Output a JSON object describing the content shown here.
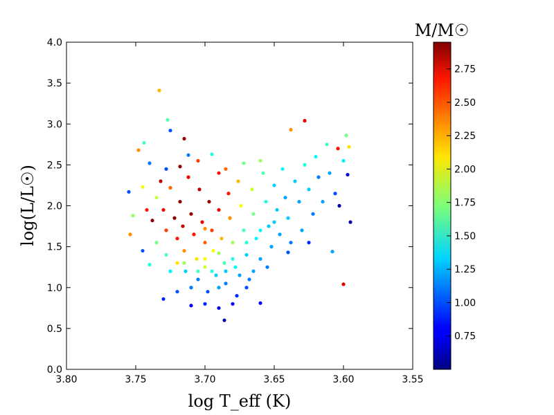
{
  "chart_data": {
    "type": "scatter",
    "xlabel": "log T_eff (K)",
    "ylabel": "log(L/L☉)",
    "colorbar_label": "M/M☉",
    "xlim": [
      3.8,
      3.55
    ],
    "ylim": [
      0.0,
      4.0
    ],
    "x_reversed": true,
    "grid": false,
    "colormap": "jet",
    "clim": [
      0.5,
      2.95
    ],
    "xticks": [
      "3.80",
      "3.75",
      "3.70",
      "3.65",
      "3.60",
      "3.55"
    ],
    "yticks": [
      "0.0",
      "0.5",
      "1.0",
      "1.5",
      "2.0",
      "2.5",
      "3.0",
      "3.5",
      "4.0"
    ],
    "colorbar_ticks": [
      "0.75",
      "1.00",
      "1.25",
      "1.50",
      "1.75",
      "2.00",
      "2.25",
      "2.50",
      "2.75"
    ],
    "points_columns": [
      "log_teff",
      "log_l",
      "mass"
    ],
    "points": [
      [
        3.733,
        3.41,
        2.2
      ],
      [
        3.727,
        3.05,
        1.6
      ],
      [
        3.725,
        2.92,
        1.0
      ],
      [
        3.715,
        2.82,
        2.9
      ],
      [
        3.628,
        3.04,
        2.7
      ],
      [
        3.638,
        2.93,
        2.3
      ],
      [
        3.6,
        1.04,
        2.7
      ],
      [
        3.686,
        0.6,
        0.6
      ],
      [
        3.595,
        1.8,
        0.6
      ],
      [
        3.608,
        1.44,
        1.2
      ],
      [
        3.598,
        2.86,
        1.7
      ],
      [
        3.754,
        1.65,
        2.3
      ],
      [
        3.748,
        2.68,
        2.3
      ],
      [
        3.744,
        2.77,
        1.6
      ],
      [
        3.74,
        2.52,
        1.1
      ],
      [
        3.755,
        2.17,
        1.0
      ],
      [
        3.752,
        1.88,
        1.8
      ],
      [
        3.745,
        2.23,
        2.0
      ],
      [
        3.742,
        1.95,
        2.6
      ],
      [
        3.738,
        1.82,
        2.9
      ],
      [
        3.735,
        2.1,
        1.9
      ],
      [
        3.735,
        1.55,
        1.7
      ],
      [
        3.732,
        2.3,
        2.8
      ],
      [
        3.73,
        1.95,
        2.7
      ],
      [
        3.728,
        1.7,
        2.5
      ],
      [
        3.728,
        1.4,
        1.6
      ],
      [
        3.725,
        2.22,
        2.4
      ],
      [
        3.722,
        1.85,
        2.9
      ],
      [
        3.72,
        1.6,
        2.6
      ],
      [
        3.72,
        1.3,
        2.1
      ],
      [
        3.718,
        2.05,
        2.9
      ],
      [
        3.716,
        1.75,
        2.8
      ],
      [
        3.715,
        1.45,
        2.3
      ],
      [
        3.714,
        1.2,
        1.3
      ],
      [
        3.712,
        2.35,
        2.7
      ],
      [
        3.71,
        1.9,
        2.9
      ],
      [
        3.708,
        1.65,
        2.6
      ],
      [
        3.706,
        1.35,
        2.1
      ],
      [
        3.705,
        1.1,
        1.1
      ],
      [
        3.704,
        2.2,
        2.8
      ],
      [
        3.702,
        1.8,
        2.7
      ],
      [
        3.7,
        1.55,
        2.4
      ],
      [
        3.7,
        1.25,
        1.9
      ],
      [
        3.698,
        0.95,
        1.0
      ],
      [
        3.697,
        2.05,
        2.9
      ],
      [
        3.695,
        1.7,
        2.5
      ],
      [
        3.694,
        1.45,
        2.0
      ],
      [
        3.692,
        1.15,
        1.3
      ],
      [
        3.69,
        2.4,
        2.6
      ],
      [
        3.69,
        1.95,
        2.7
      ],
      [
        3.688,
        1.6,
        2.2
      ],
      [
        3.686,
        1.3,
        1.6
      ],
      [
        3.685,
        1.05,
        1.1
      ],
      [
        3.683,
        2.15,
        2.6
      ],
      [
        3.682,
        1.85,
        2.3
      ],
      [
        3.68,
        1.55,
        1.8
      ],
      [
        3.678,
        1.25,
        1.4
      ],
      [
        3.677,
        0.9,
        0.9
      ],
      [
        3.676,
        2.3,
        2.2
      ],
      [
        3.674,
        2.0,
        2.0
      ],
      [
        3.672,
        1.7,
        1.6
      ],
      [
        3.67,
        1.4,
        1.3
      ],
      [
        3.668,
        1.1,
        1.1
      ],
      [
        3.666,
        2.2,
        1.9
      ],
      [
        3.665,
        1.9,
        1.7
      ],
      [
        3.663,
        1.6,
        1.4
      ],
      [
        3.66,
        1.35,
        1.2
      ],
      [
        3.658,
        2.4,
        1.6
      ],
      [
        3.656,
        2.05,
        1.5
      ],
      [
        3.654,
        1.75,
        1.3
      ],
      [
        3.652,
        1.5,
        1.2
      ],
      [
        3.65,
        2.25,
        1.3
      ],
      [
        3.648,
        1.95,
        1.3
      ],
      [
        3.646,
        1.65,
        1.2
      ],
      [
        3.644,
        2.45,
        1.4
      ],
      [
        3.642,
        2.1,
        1.2
      ],
      [
        3.64,
        1.85,
        1.3
      ],
      [
        3.638,
        1.55,
        1.1
      ],
      [
        3.635,
        2.3,
        1.3
      ],
      [
        3.632,
        2.05,
        1.2
      ],
      [
        3.63,
        1.7,
        1.2
      ],
      [
        3.628,
        2.5,
        1.5
      ],
      [
        3.625,
        2.2,
        1.3
      ],
      [
        3.622,
        1.9,
        1.1
      ],
      [
        3.62,
        2.6,
        1.4
      ],
      [
        3.618,
        2.35,
        1.1
      ],
      [
        3.615,
        2.05,
        1.2
      ],
      [
        3.612,
        2.75,
        1.6
      ],
      [
        3.61,
        2.4,
        1.2
      ],
      [
        3.606,
        2.15,
        1.0
      ],
      [
        3.604,
        2.7,
        2.6
      ],
      [
        3.6,
        2.55,
        1.4
      ],
      [
        3.597,
        2.38,
        0.7
      ],
      [
        3.596,
        2.72,
        2.1
      ],
      [
        3.603,
        2.0,
        0.6
      ],
      [
        3.64,
        1.43,
        1.0
      ],
      [
        3.625,
        1.55,
        0.9
      ],
      [
        3.71,
        0.78,
        0.8
      ],
      [
        3.7,
        0.8,
        0.9
      ],
      [
        3.69,
        0.75,
        0.7
      ],
      [
        3.68,
        0.8,
        0.8
      ],
      [
        3.73,
        0.86,
        0.9
      ],
      [
        3.72,
        0.95,
        1.0
      ],
      [
        3.66,
        0.81,
        0.8
      ],
      [
        3.71,
        1.0,
        1.1
      ],
      [
        3.69,
        1.0,
        1.2
      ],
      [
        3.67,
        1.0,
        1.0
      ],
      [
        3.74,
        1.28,
        1.5
      ],
      [
        3.745,
        1.45,
        1.0
      ],
      [
        3.705,
        2.55,
        2.5
      ],
      [
        3.695,
        2.63,
        1.5
      ],
      [
        3.685,
        2.45,
        2.4
      ],
      [
        3.672,
        2.52,
        1.7
      ],
      [
        3.66,
        2.55,
        1.8
      ],
      [
        3.718,
        2.48,
        2.9
      ],
      [
        3.728,
        2.45,
        1.0
      ],
      [
        3.712,
        2.62,
        1.1
      ],
      [
        3.7,
        1.72,
        2.3
      ],
      [
        3.69,
        1.42,
        1.8
      ],
      [
        3.68,
        1.35,
        1.5
      ],
      [
        3.67,
        1.55,
        1.5
      ],
      [
        3.66,
        1.7,
        1.4
      ],
      [
        3.65,
        1.8,
        1.3
      ],
      [
        3.7,
        1.35,
        2.0
      ],
      [
        3.715,
        1.3,
        1.8
      ],
      [
        3.705,
        1.2,
        1.6
      ],
      [
        3.695,
        1.2,
        1.5
      ],
      [
        3.685,
        1.2,
        1.3
      ],
      [
        3.725,
        1.2,
        1.4
      ],
      [
        3.675,
        1.15,
        1.2
      ],
      [
        3.665,
        1.2,
        1.2
      ],
      [
        3.655,
        1.25,
        1.1
      ]
    ]
  }
}
